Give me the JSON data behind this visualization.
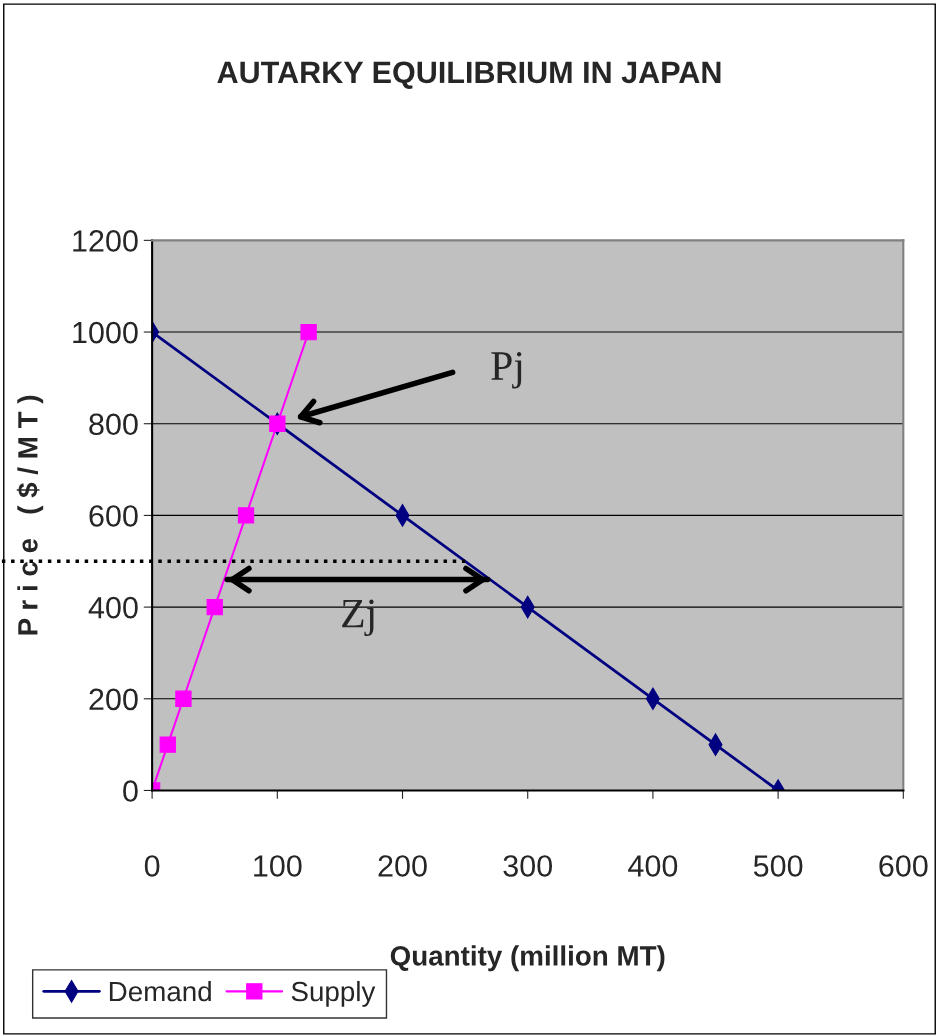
{
  "chart_data": {
    "type": "line",
    "title": "AUTARKY EQUILIBRIUM IN JAPAN",
    "xlabel": "Quantity (million MT)",
    "ylabel": "P r i c e   ( $ / M T )",
    "xlim": [
      0,
      600
    ],
    "xticks": [
      0,
      100,
      200,
      300,
      400,
      500,
      600
    ],
    "ylim": [
      0,
      1200
    ],
    "yticks": [
      0,
      200,
      400,
      600,
      800,
      1000,
      1200
    ],
    "grid": "y",
    "legend": "bottom left",
    "series": [
      {
        "name": "Demand",
        "color": "#000080",
        "marker": "diamond",
        "x": [
          0,
          100,
          200,
          300,
          400,
          450,
          500
        ],
        "values": [
          1000,
          800,
          600,
          400,
          200,
          100,
          0
        ]
      },
      {
        "name": "Supply",
        "color": "#ff00ff",
        "marker": "square",
        "x": [
          0,
          12.5,
          25,
          50,
          75,
          100,
          125
        ],
        "values": [
          0,
          100,
          200,
          400,
          600,
          800,
          1000
        ]
      },
      {
        "color": "#000000",
        "marker": "none",
        "x": [
          60,
          268
        ],
        "values": [
          460,
          460
        ]
      }
    ],
    "ref_lines": [
      {
        "axis": "y",
        "value": 500,
        "line_style": "dotted",
        "color": "#000000"
      }
    ],
    "annotations": [
      "Pj",
      "Zj"
    ]
  }
}
